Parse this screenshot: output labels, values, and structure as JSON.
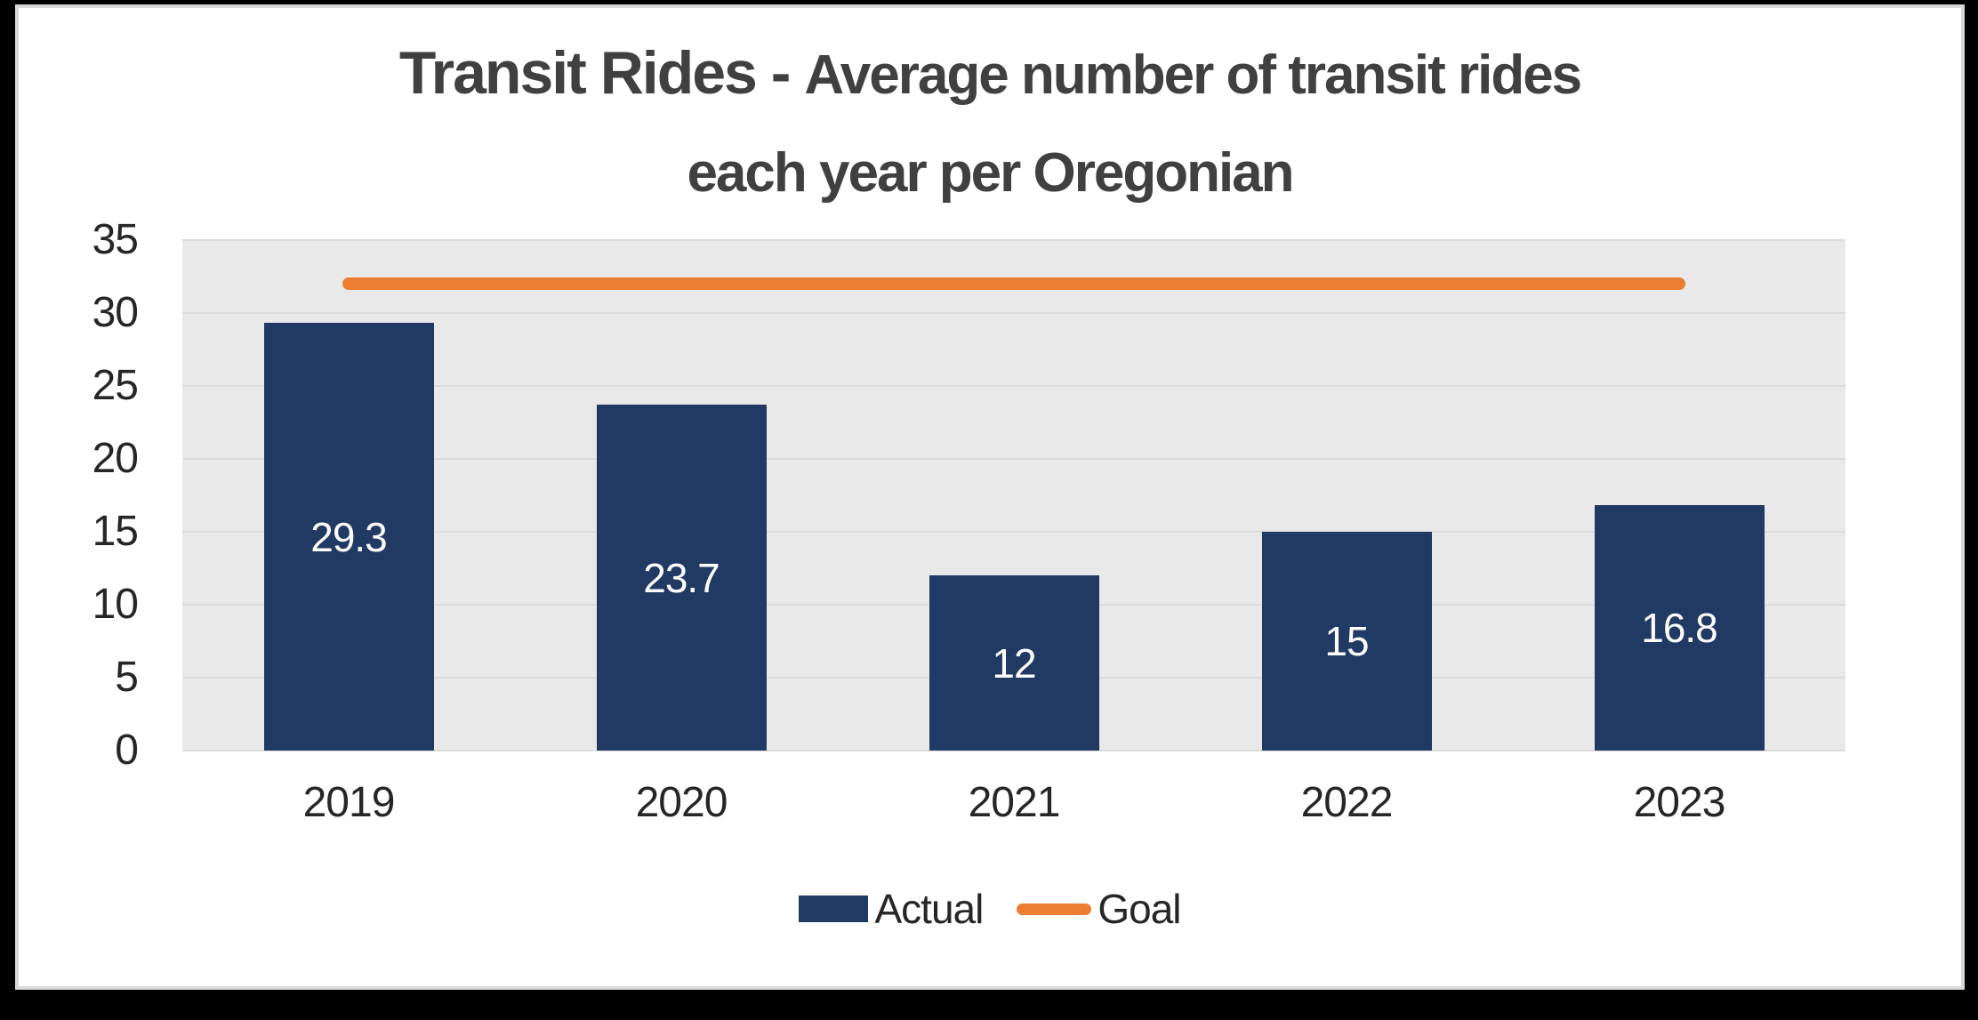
{
  "title": {
    "part1": "Transit Rides - ",
    "part2": "Average number of transit rides",
    "line2": "each year per Oregonian",
    "color": "#404040"
  },
  "chart_data": {
    "type": "bar",
    "title": "Transit Rides - Average number of transit rides each year per Oregonian",
    "categories": [
      "2019",
      "2020",
      "2021",
      "2022",
      "2023"
    ],
    "series": [
      {
        "name": "Actual",
        "type": "bar",
        "values": [
          29.3,
          23.7,
          12,
          15,
          16.8
        ],
        "labels": [
          "29.3",
          "23.7",
          "12",
          "15",
          "16.8"
        ],
        "color": "#213A64",
        "label_color": "#ffffff"
      },
      {
        "name": "Goal",
        "type": "line",
        "values": [
          32,
          32,
          32,
          32,
          32
        ],
        "color": "#ED7D31"
      }
    ],
    "xlabel": "",
    "ylabel": "",
    "ylim": [
      0,
      35
    ],
    "yticks": [
      35,
      30,
      25,
      20,
      15,
      10,
      5,
      0
    ],
    "grid": true,
    "legend_position": "bottom",
    "plot_background": "#E9E9E9",
    "gridline_color": "#DCDCDC",
    "axis_label_color": "#262626"
  },
  "legend": {
    "items": [
      {
        "label": "Actual",
        "swatch": "bar",
        "color": "#213A64"
      },
      {
        "label": "Goal",
        "swatch": "line",
        "color": "#ED7D31"
      }
    ]
  }
}
